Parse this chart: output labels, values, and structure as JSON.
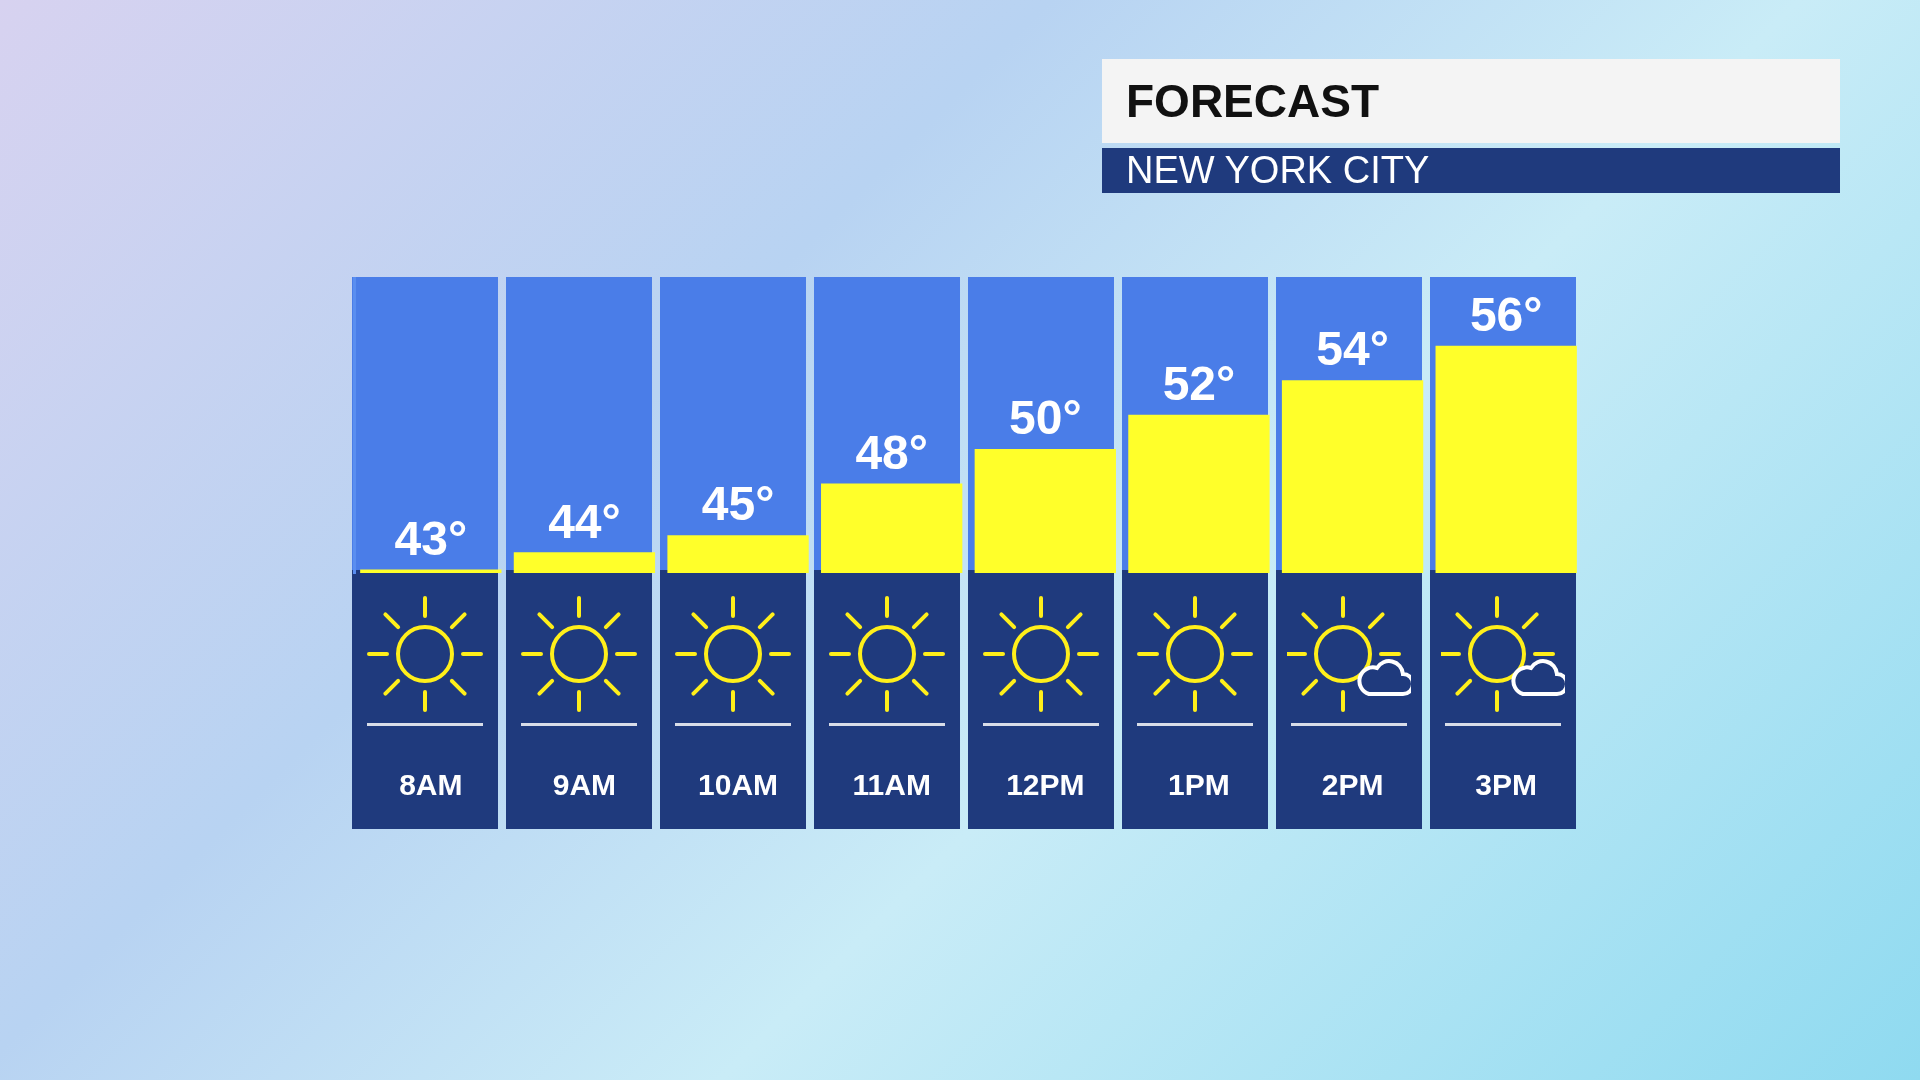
{
  "chart_data": {
    "type": "bar",
    "title": "FORECAST",
    "subtitle": "NEW YORK CITY",
    "categories": [
      "8AM",
      "9AM",
      "10AM",
      "11AM",
      "12PM",
      "1PM",
      "2PM",
      "3PM"
    ],
    "values": [
      43,
      44,
      45,
      48,
      50,
      52,
      54,
      56
    ],
    "value_labels": [
      "43°",
      "44°",
      "45°",
      "48°",
      "50°",
      "52°",
      "54°",
      "56°"
    ],
    "color": "#ffff2a",
    "ylim": [
      42.8,
      60
    ],
    "tick_labels": "x",
    "grid": false,
    "legend": false
  }
}
